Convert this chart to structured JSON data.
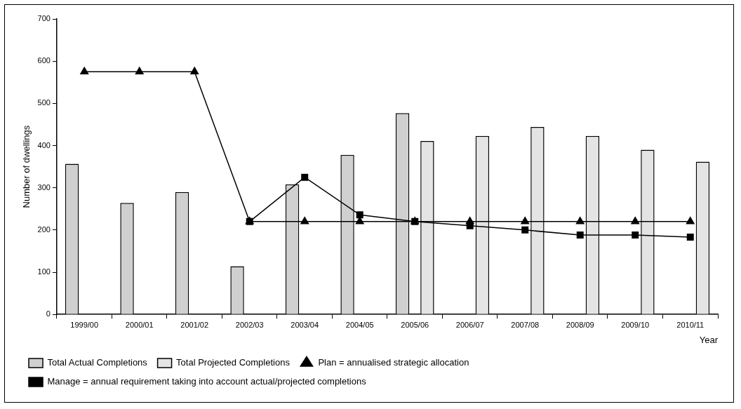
{
  "chart_data": {
    "type": "bar",
    "xlabel": "Year",
    "ylabel": "Number of dwellings",
    "categories": [
      "1999/00",
      "2000/01",
      "2001/02",
      "2002/03",
      "2003/04",
      "2004/05",
      "2005/06",
      "2006/07",
      "2007/08",
      "2008/09",
      "2009/10",
      "2010/11"
    ],
    "series": [
      {
        "name": "Total Actual Completions",
        "color": "#d0d0d0",
        "values": [
          357,
          264,
          290,
          114,
          308,
          378,
          477,
          null,
          null,
          null,
          null,
          null
        ]
      },
      {
        "name": "Total Projected Completions",
        "color": "#e4e4e4",
        "values": [
          null,
          null,
          null,
          null,
          null,
          null,
          411,
          423,
          444,
          423,
          390,
          362
        ]
      },
      {
        "name": "Plan = annualised strategic allocation",
        "type": "line",
        "marker": "triangle",
        "color": "#000000",
        "values": [
          575,
          575,
          575,
          220,
          220,
          220,
          220,
          220,
          220,
          220,
          220,
          220
        ]
      },
      {
        "name": "Manage = annual requirement taking into account actual/projected completions",
        "type": "line",
        "marker": "square",
        "color": "#000000",
        "values": [
          null,
          null,
          null,
          220,
          325,
          236,
          220,
          210,
          200,
          188,
          188,
          183
        ]
      }
    ],
    "ylim": [
      0,
      700
    ],
    "yticks": [
      0,
      100,
      200,
      300,
      400,
      500,
      600,
      700
    ],
    "grid": false,
    "legend": "bottom"
  }
}
